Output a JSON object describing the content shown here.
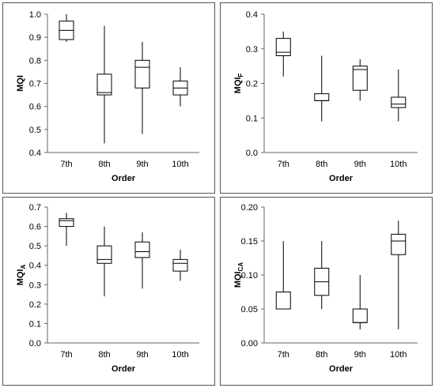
{
  "chart_data": [
    {
      "type": "box",
      "ylabel": "MQI",
      "ylabel_sub": "",
      "xlabel": "Order",
      "categories": [
        "7th",
        "8th",
        "9th",
        "10th"
      ],
      "ylim": [
        0.4,
        1.0
      ],
      "yticks": [
        "0.4",
        "0.5",
        "0.6",
        "0.7",
        "0.8",
        "0.9",
        "1.0"
      ],
      "boxes": [
        {
          "min": 0.88,
          "q1": 0.89,
          "median": 0.93,
          "q3": 0.97,
          "max": 1.0
        },
        {
          "min": 0.44,
          "q1": 0.65,
          "median": 0.66,
          "q3": 0.74,
          "max": 0.95
        },
        {
          "min": 0.48,
          "q1": 0.68,
          "median": 0.77,
          "q3": 0.8,
          "max": 0.88
        },
        {
          "min": 0.6,
          "q1": 0.65,
          "median": 0.68,
          "q3": 0.71,
          "max": 0.77
        }
      ]
    },
    {
      "type": "box",
      "ylabel": "MQI",
      "ylabel_sub": "F",
      "xlabel": "Order",
      "categories": [
        "7th",
        "8th",
        "9th",
        "10th"
      ],
      "ylim": [
        0.0,
        0.4
      ],
      "yticks": [
        "0.0",
        "0.1",
        "0.2",
        "0.3",
        "0.4"
      ],
      "boxes": [
        {
          "min": 0.22,
          "q1": 0.28,
          "median": 0.29,
          "q3": 0.33,
          "max": 0.35
        },
        {
          "min": 0.09,
          "q1": 0.15,
          "median": 0.15,
          "q3": 0.17,
          "max": 0.28
        },
        {
          "min": 0.15,
          "q1": 0.18,
          "median": 0.24,
          "q3": 0.25,
          "max": 0.27
        },
        {
          "min": 0.09,
          "q1": 0.13,
          "median": 0.14,
          "q3": 0.16,
          "max": 0.24
        }
      ]
    },
    {
      "type": "box",
      "ylabel": "MQI",
      "ylabel_sub": "A",
      "xlabel": "Order",
      "categories": [
        "7th",
        "8th",
        "9th",
        "10th"
      ],
      "ylim": [
        0.0,
        0.7
      ],
      "yticks": [
        "0.0",
        "0.1",
        "0.2",
        "0.3",
        "0.4",
        "0.5",
        "0.6",
        "0.7"
      ],
      "boxes": [
        {
          "min": 0.5,
          "q1": 0.6,
          "median": 0.63,
          "q3": 0.64,
          "max": 0.67
        },
        {
          "min": 0.24,
          "q1": 0.41,
          "median": 0.43,
          "q3": 0.5,
          "max": 0.6
        },
        {
          "min": 0.28,
          "q1": 0.44,
          "median": 0.47,
          "q3": 0.52,
          "max": 0.57
        },
        {
          "min": 0.32,
          "q1": 0.37,
          "median": 0.41,
          "q3": 0.43,
          "max": 0.48
        }
      ]
    },
    {
      "type": "box",
      "ylabel": "MQI",
      "ylabel_sub": "CA",
      "xlabel": "Order",
      "categories": [
        "7th",
        "8th",
        "9th",
        "10th"
      ],
      "ylim": [
        0.0,
        0.2
      ],
      "yticks": [
        "0.00",
        "0.05",
        "0.10",
        "0.15",
        "0.20"
      ],
      "boxes": [
        {
          "min": 0.05,
          "q1": 0.05,
          "median": 0.05,
          "q3": 0.075,
          "max": 0.15
        },
        {
          "min": 0.05,
          "q1": 0.07,
          "median": 0.09,
          "q3": 0.11,
          "max": 0.15
        },
        {
          "min": 0.02,
          "q1": 0.03,
          "median": 0.03,
          "q3": 0.05,
          "max": 0.1
        },
        {
          "min": 0.02,
          "q1": 0.13,
          "median": 0.15,
          "q3": 0.16,
          "max": 0.18
        }
      ]
    }
  ]
}
